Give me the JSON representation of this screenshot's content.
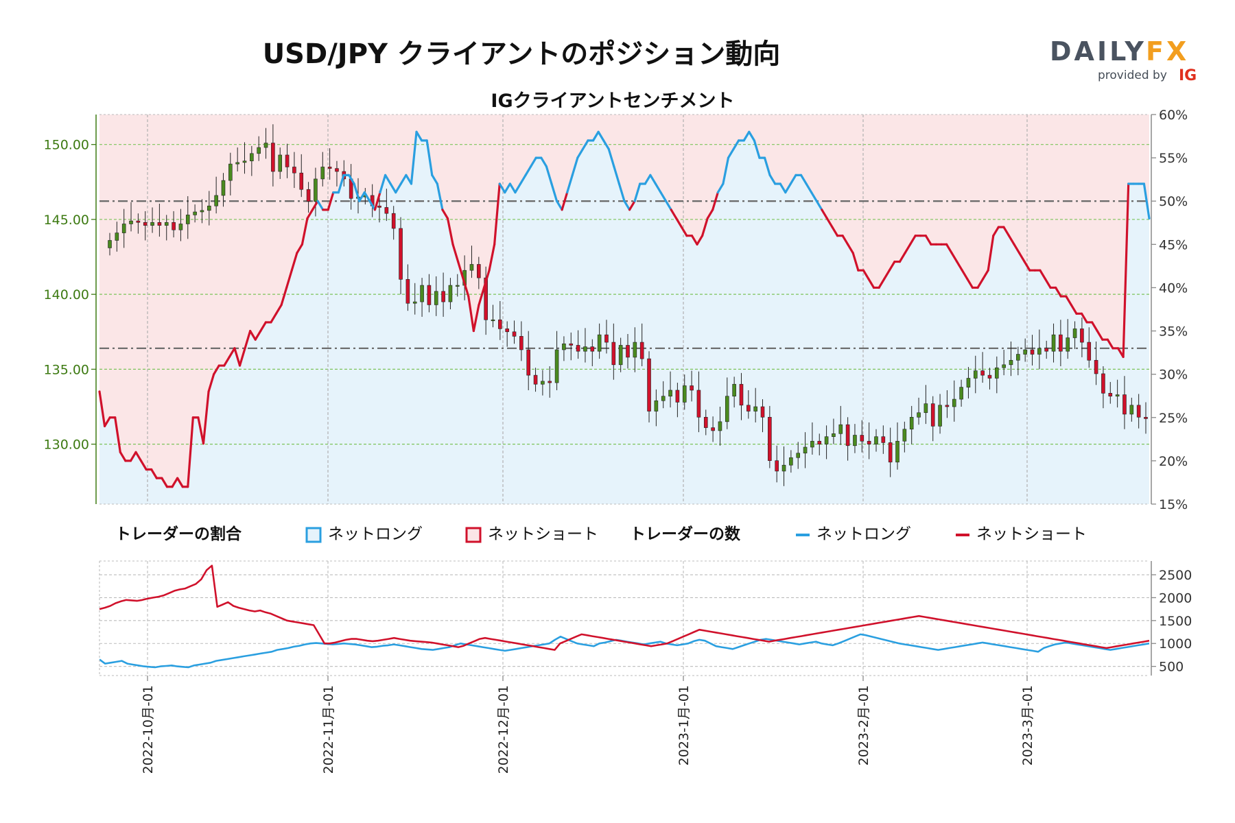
{
  "header": {
    "title": "USD/JPY クライアントのポジション動向",
    "subtitle": "IGクライアントセンチメント"
  },
  "logo": {
    "brand_part1": "DAILY",
    "brand_part2": "FX",
    "provided_by": "provided by",
    "ig": "IG"
  },
  "colors": {
    "long": "#2a9fe0",
    "short": "#d0112b",
    "bg_long": "#e6f3fb",
    "bg_short": "#fbe6e7",
    "candle_up": "#4a8a1f",
    "candle_down": "#d0112b",
    "left_axis": "#3d7a12"
  },
  "legend": {
    "ratio_title": "トレーダーの割合",
    "ratio_long": "ネットロング",
    "ratio_short": "ネットショート",
    "count_title": "トレーダーの数",
    "count_long": "ネットロング",
    "count_short": "ネットショート"
  },
  "chart_data": {
    "type": "line",
    "instrument": "USD/JPY",
    "x_ticks": [
      "2022-10月-01",
      "2022-11月-01",
      "2022-12月-01",
      "2023-1月-01",
      "2023-2月-01",
      "2023-3月-01"
    ],
    "price_axis": {
      "ticks": [
        "130.00",
        "135.00",
        "140.00",
        "145.00",
        "150.00"
      ],
      "ylim": [
        126.0,
        152.0
      ]
    },
    "sentiment_axis": {
      "ticks": [
        "15%",
        "20%",
        "25%",
        "30%",
        "35%",
        "40%",
        "45%",
        "50%",
        "55%",
        "60%"
      ],
      "ylim": [
        15,
        60
      ],
      "reference_lines": [
        50,
        33
      ]
    },
    "count_axis": {
      "ticks": [
        "500",
        "1000",
        "1500",
        "2000",
        "2500"
      ],
      "ylim": [
        300,
        2800
      ]
    },
    "price_close": [
      143.6,
      144.1,
      144.7,
      144.9,
      144.8,
      144.6,
      144.8,
      144.6,
      144.8,
      144.3,
      144.7,
      145.3,
      145.5,
      145.6,
      145.9,
      146.6,
      147.6,
      148.7,
      148.8,
      148.9,
      149.4,
      149.8,
      150.1,
      148.2,
      149.3,
      148.5,
      148.1,
      147.0,
      146.2,
      147.7,
      148.5,
      148.4,
      148.2,
      147.7,
      146.4,
      146.5,
      146.6,
      145.9,
      145.8,
      145.4,
      144.4,
      141.0,
      139.4,
      139.5,
      140.6,
      139.3,
      140.2,
      139.5,
      140.6,
      140.6,
      141.6,
      142.0,
      141.1,
      138.3,
      138.3,
      137.7,
      137.5,
      137.2,
      136.3,
      134.6,
      134.0,
      134.2,
      134.1,
      136.3,
      136.7,
      136.6,
      136.2,
      136.5,
      136.2,
      137.3,
      136.8,
      135.3,
      136.6,
      135.8,
      136.8,
      135.7,
      132.2,
      132.9,
      133.2,
      133.6,
      132.8,
      133.9,
      133.6,
      131.8,
      131.1,
      130.9,
      131.5,
      133.2,
      134.0,
      132.6,
      132.2,
      132.5,
      131.8,
      128.9,
      128.2,
      128.6,
      129.1,
      129.4,
      129.8,
      130.2,
      130.0,
      130.5,
      130.7,
      131.3,
      129.9,
      130.6,
      130.2,
      130.0,
      130.5,
      130.1,
      128.8,
      130.2,
      131.0,
      131.8,
      132.1,
      132.7,
      131.2,
      132.6,
      132.5,
      133.0,
      133.8,
      134.4,
      134.9,
      134.6,
      134.4,
      135.1,
      135.3,
      135.6,
      136.0,
      136.3,
      136.0,
      136.4,
      136.2,
      137.3,
      136.2,
      137.1,
      137.7,
      136.8,
      135.6,
      134.7,
      133.4,
      133.2,
      133.3,
      132.0,
      132.6,
      131.8,
      131.7
    ],
    "series": [
      {
        "name": "ネットロング",
        "values": [
          28,
          24,
          25,
          25,
          21,
          20,
          20,
          21,
          20,
          19,
          19,
          18,
          18,
          17,
          17,
          18,
          17,
          17,
          25,
          25,
          22,
          28,
          30,
          31,
          31,
          32,
          33,
          31,
          33,
          35,
          34,
          35,
          36,
          36,
          37,
          38,
          40,
          42,
          44,
          45,
          48,
          49,
          50,
          49,
          49,
          51,
          51,
          53,
          53,
          52,
          50,
          51,
          50,
          49,
          51,
          53,
          52,
          51,
          52,
          53,
          52,
          58,
          57,
          57,
          53,
          52,
          49,
          48,
          45,
          43,
          41,
          39,
          35,
          38,
          40,
          42,
          45,
          52,
          51,
          52,
          51,
          52,
          53,
          54,
          55,
          55,
          54,
          52,
          50,
          49,
          51,
          53,
          55,
          56,
          57,
          57,
          58,
          57,
          56,
          54,
          52,
          50,
          49,
          50,
          52,
          52,
          53,
          52,
          51,
          50,
          49,
          48,
          47,
          46,
          46,
          45,
          46,
          48,
          49,
          51,
          52,
          55,
          56,
          57,
          57,
          58,
          57,
          55,
          55,
          53,
          52,
          52,
          51,
          52,
          53,
          53,
          52,
          51,
          50,
          49,
          48,
          47,
          46,
          46,
          45,
          44,
          42,
          42,
          41,
          40,
          40,
          41,
          42,
          43,
          43,
          44,
          45,
          46,
          46,
          46,
          45,
          45,
          45,
          45,
          44,
          43,
          42,
          41,
          40,
          40,
          41,
          42,
          46,
          47,
          47,
          46,
          45,
          44,
          43,
          42,
          42,
          42,
          41,
          40,
          40,
          39,
          39,
          38,
          37,
          37,
          36,
          36,
          35,
          34,
          34,
          33,
          33,
          32,
          52,
          52,
          52,
          52,
          48
        ]
      },
      {
        "name": "ネットショート",
        "values": [
          72,
          76,
          75,
          75,
          79,
          80,
          80,
          79,
          80,
          81,
          81,
          82,
          82,
          83,
          83,
          82,
          83,
          83,
          75,
          75,
          78,
          72,
          70,
          69,
          69,
          68,
          67,
          69,
          67,
          65,
          66,
          65,
          64,
          64,
          63,
          62,
          60,
          58,
          56,
          55,
          52,
          51,
          50,
          51,
          51,
          49,
          49,
          47,
          47,
          48,
          50,
          49,
          50,
          51,
          49,
          47,
          48,
          49,
          48,
          47,
          48,
          42,
          43,
          43,
          47,
          48,
          51,
          52,
          55,
          57,
          59,
          61,
          65,
          62,
          60,
          58,
          55,
          48,
          49,
          48,
          49,
          48,
          47,
          46,
          45,
          45,
          46,
          48,
          50,
          51,
          49,
          47,
          45,
          44,
          43,
          43,
          42,
          43,
          44,
          46,
          48,
          50,
          51,
          50,
          48,
          48,
          47,
          48,
          49,
          50,
          51,
          52,
          53,
          54,
          54,
          55,
          54,
          52,
          51,
          49,
          48,
          45,
          44,
          43,
          43,
          42,
          43,
          45,
          45,
          47,
          48,
          48,
          49,
          48,
          47,
          47,
          48,
          49,
          50,
          51,
          52,
          53,
          54,
          54,
          55,
          56,
          58,
          58,
          59,
          60,
          60,
          59,
          58,
          57,
          57,
          56,
          55,
          54,
          54,
          54,
          55,
          55,
          55,
          55,
          56,
          57,
          58,
          59,
          60,
          60,
          59,
          58,
          54,
          53,
          53,
          54,
          55,
          56,
          57,
          58,
          58,
          58,
          59,
          60,
          60,
          61,
          61,
          62,
          63,
          63,
          64,
          64,
          65,
          66,
          66,
          67,
          67,
          68,
          48,
          48,
          48,
          48,
          52
        ]
      }
    ],
    "count_long_values": [
      650,
      560,
      580,
      600,
      620,
      560,
      540,
      520,
      500,
      490,
      480,
      500,
      510,
      520,
      500,
      490,
      480,
      520,
      540,
      560,
      580,
      620,
      640,
      660,
      680,
      700,
      720,
      740,
      760,
      780,
      800,
      820,
      860,
      880,
      900,
      930,
      950,
      980,
      1000,
      1010,
      1000,
      990,
      980,
      990,
      1000,
      990,
      980,
      960,
      940,
      920,
      930,
      950,
      960,
      980,
      960,
      940,
      920,
      900,
      880,
      870,
      860,
      880,
      900,
      920,
      960,
      1000,
      980,
      960,
      940,
      920,
      900,
      880,
      860,
      840,
      860,
      880,
      900,
      920,
      940,
      960,
      980,
      1000,
      1080,
      1150,
      1100,
      1050,
      1000,
      980,
      960,
      940,
      1000,
      1020,
      1050,
      1080,
      1060,
      1040,
      1020,
      1000,
      980,
      1000,
      1020,
      1040,
      1000,
      980,
      960,
      980,
      1000,
      1050,
      1080,
      1060,
      1000,
      940,
      920,
      900,
      880,
      920,
      960,
      1000,
      1040,
      1080,
      1100,
      1080,
      1060,
      1040,
      1020,
      1000,
      980,
      1000,
      1020,
      1040,
      1000,
      980,
      960,
      1000,
      1050,
      1100,
      1150,
      1200,
      1180,
      1150,
      1120,
      1090,
      1060,
      1030,
      1000,
      980,
      960,
      940,
      920,
      900,
      880,
      860,
      880,
      900,
      920,
      940,
      960,
      980,
      1000,
      1020,
      1000,
      980,
      960,
      940,
      920,
      900,
      880,
      860,
      840,
      820,
      900,
      940,
      980,
      1000,
      1020,
      1000,
      980,
      960,
      940,
      920,
      900,
      880,
      860,
      880,
      900,
      920,
      940,
      960,
      980,
      1000
    ],
    "count_short_values": [
      1750,
      1780,
      1820,
      1880,
      1920,
      1950,
      1940,
      1930,
      1950,
      1980,
      2000,
      2020,
      2050,
      2100,
      2150,
      2180,
      2200,
      2250,
      2300,
      2400,
      2600,
      2700,
      1800,
      1850,
      1900,
      1820,
      1780,
      1750,
      1720,
      1700,
      1720,
      1680,
      1650,
      1600,
      1550,
      1500,
      1480,
      1460,
      1440,
      1420,
      1400,
      1200,
      1000,
      1000,
      1020,
      1050,
      1080,
      1100,
      1100,
      1080,
      1060,
      1050,
      1060,
      1080,
      1100,
      1120,
      1100,
      1080,
      1060,
      1050,
      1040,
      1030,
      1020,
      1000,
      980,
      960,
      940,
      920,
      950,
      1000,
      1050,
      1100,
      1120,
      1100,
      1080,
      1060,
      1040,
      1020,
      1000,
      980,
      960,
      940,
      920,
      900,
      880,
      860,
      1000,
      1050,
      1100,
      1150,
      1200,
      1180,
      1160,
      1140,
      1120,
      1100,
      1080,
      1060,
      1040,
      1020,
      1000,
      980,
      960,
      940,
      960,
      980,
      1000,
      1050,
      1100,
      1150,
      1200,
      1250,
      1300,
      1280,
      1260,
      1240,
      1220,
      1200,
      1180,
      1160,
      1140,
      1120,
      1100,
      1080,
      1060,
      1040,
      1060,
      1080,
      1100,
      1120,
      1140,
      1160,
      1180,
      1200,
      1220,
      1240,
      1260,
      1280,
      1300,
      1320,
      1340,
      1360,
      1380,
      1400,
      1420,
      1440,
      1460,
      1480,
      1500,
      1520,
      1540,
      1560,
      1580,
      1600,
      1580,
      1560,
      1540,
      1520,
      1500,
      1480,
      1460,
      1440,
      1420,
      1400,
      1380,
      1360,
      1340,
      1320,
      1300,
      1280,
      1260,
      1240,
      1220,
      1200,
      1180,
      1160,
      1140,
      1120,
      1100,
      1080,
      1060,
      1040,
      1020,
      1000,
      980,
      960,
      940,
      920,
      900,
      920,
      940,
      960,
      980,
      1000,
      1020,
      1040,
      1060
    ]
  }
}
